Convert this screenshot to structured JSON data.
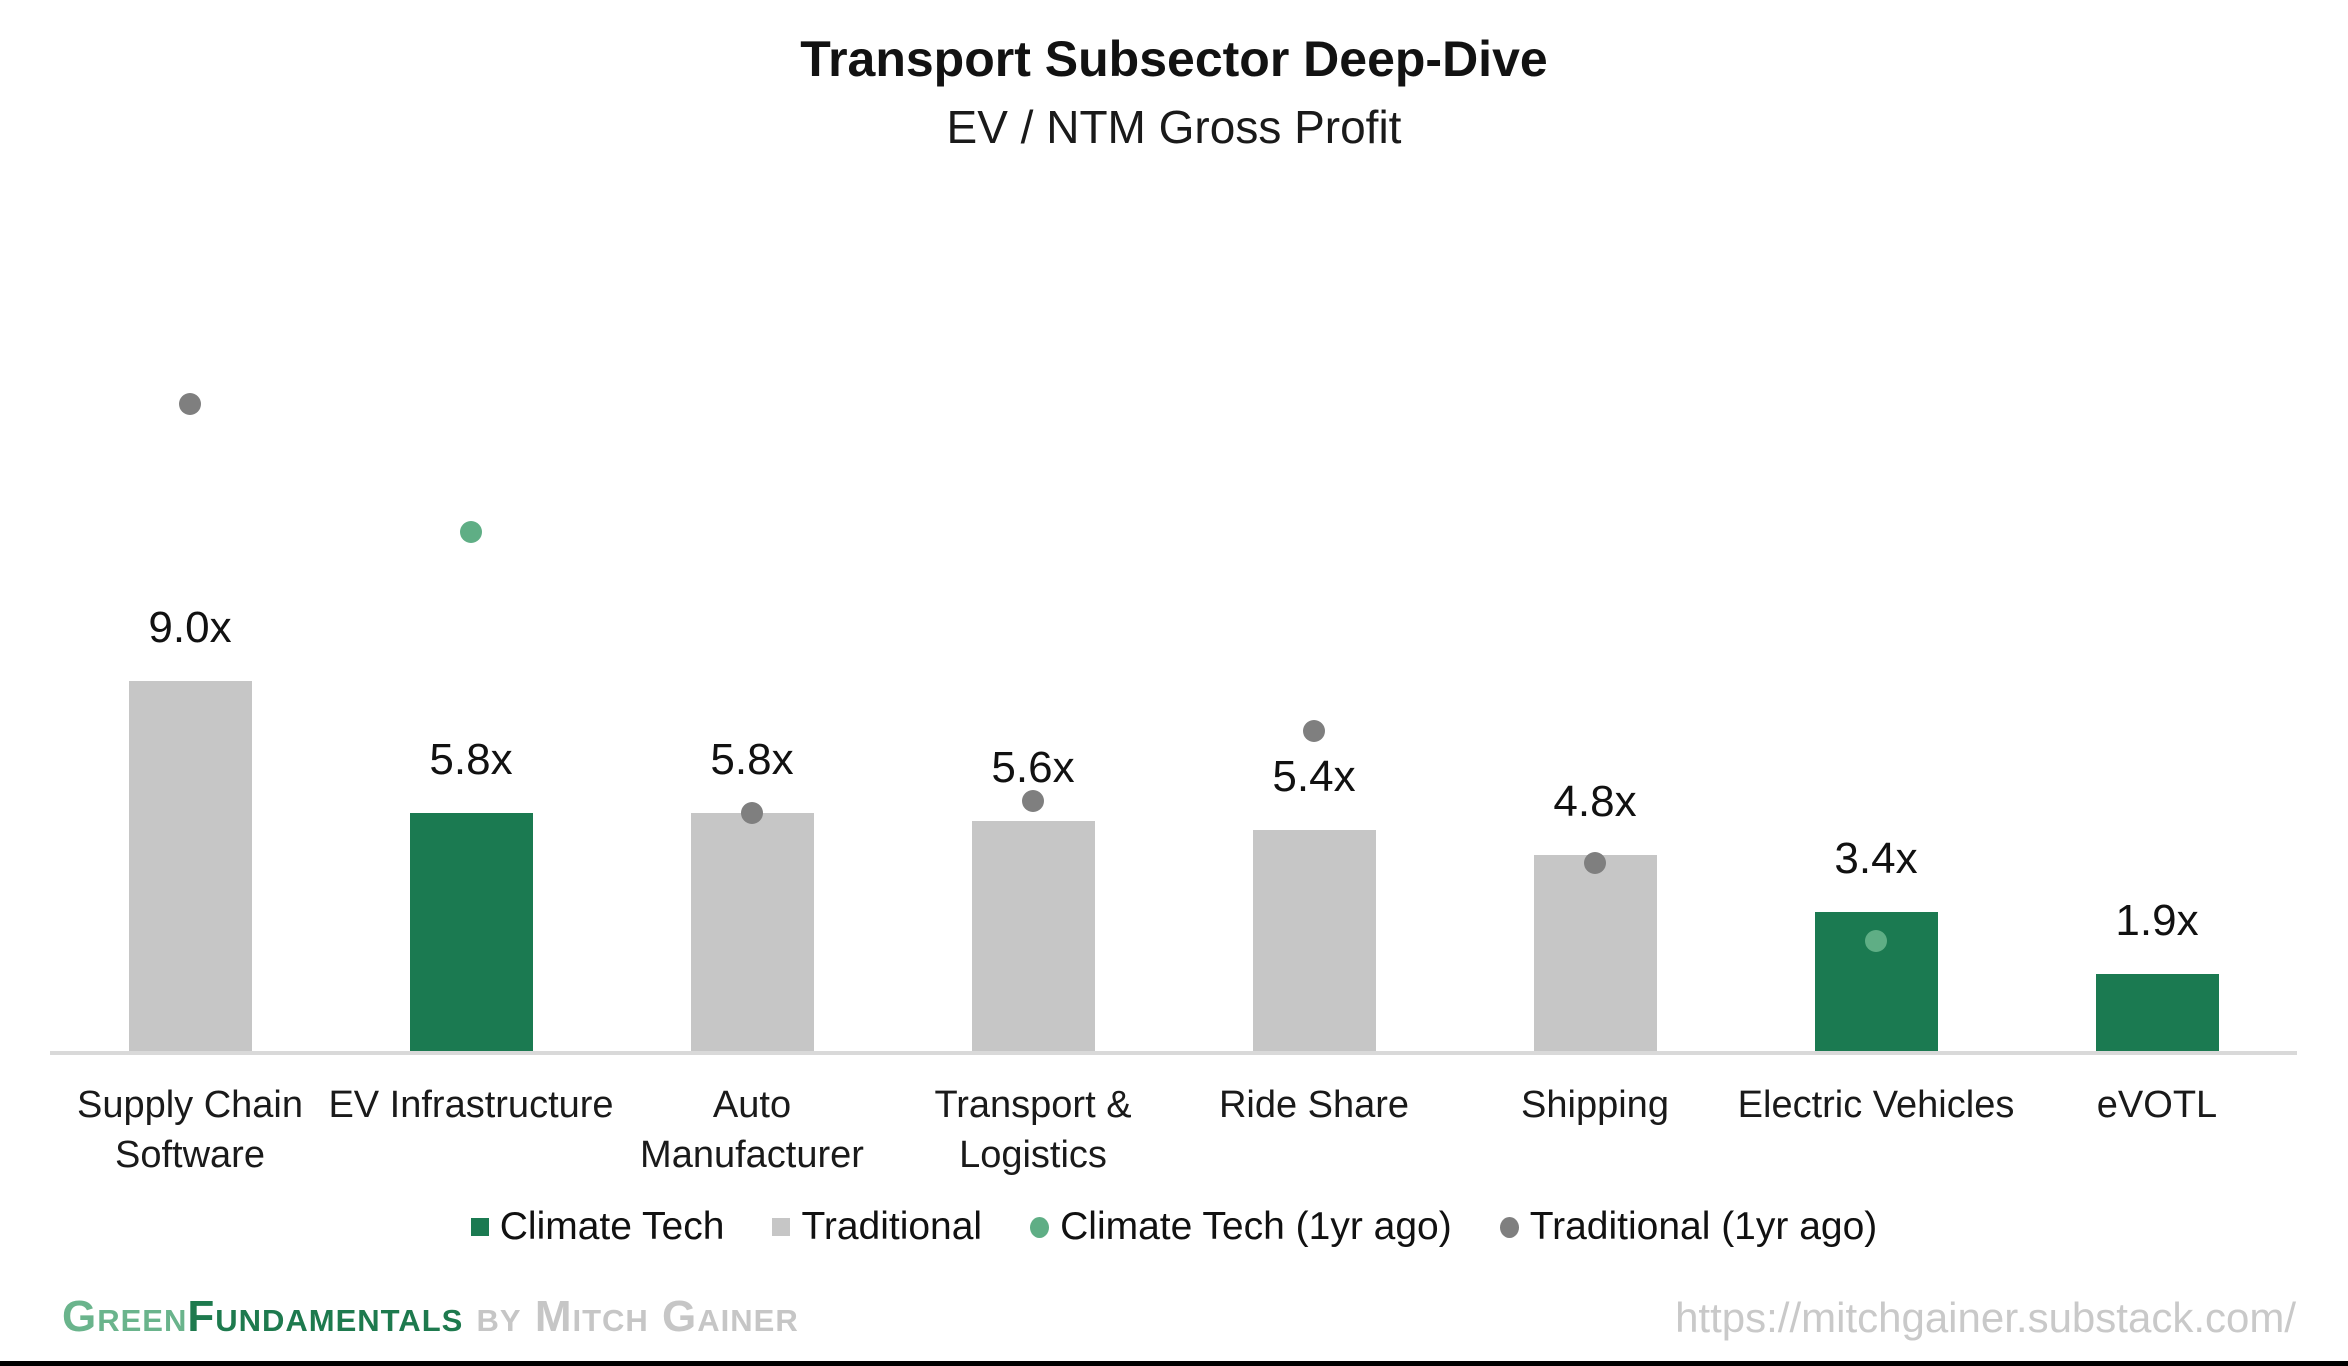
{
  "title": "Transport Subsector Deep-Dive",
  "subtitle": "EV / NTM Gross Profit",
  "chart_data": {
    "type": "bar",
    "title": "Transport Subsector Deep-Dive",
    "subtitle": "EV / NTM Gross Profit",
    "value_unit_suffix": "x",
    "grid": false,
    "legend_position": "bottom",
    "ylim": [
      0,
      21.6
    ],
    "categories": [
      "Supply Chain Software",
      "EV Infrastructure",
      "Auto Manufacturer",
      "Transport & Logistics",
      "Ride Share",
      "Shipping",
      "Electric Vehicles",
      "eVOTL"
    ],
    "category_lines": [
      [
        "Supply Chain",
        "Software"
      ],
      [
        "EV Infrastructure"
      ],
      [
        "Auto",
        "Manufacturer"
      ],
      [
        "Transport &",
        "Logistics"
      ],
      [
        "Ride Share"
      ],
      [
        "Shipping"
      ],
      [
        "Electric Vehicles"
      ],
      [
        "eVOTL"
      ]
    ],
    "groups": [
      "Traditional",
      "Climate Tech",
      "Traditional",
      "Traditional",
      "Traditional",
      "Traditional",
      "Climate Tech",
      "Climate Tech"
    ],
    "series": [
      {
        "name": "Current EV / NTM Gross Profit",
        "type": "bar",
        "values": [
          9.0,
          5.8,
          5.8,
          5.6,
          5.4,
          4.8,
          3.4,
          1.9
        ],
        "labels": [
          "9.0x",
          "5.8x",
          "5.8x",
          "5.6x",
          "5.4x",
          "4.8x",
          "3.4x",
          "1.9x"
        ]
      },
      {
        "name": "1yr ago EV / NTM Gross Profit",
        "type": "scatter",
        "values": [
          15.7,
          12.6,
          5.8,
          6.1,
          7.8,
          4.6,
          2.7,
          null
        ]
      }
    ]
  },
  "legend": {
    "items": [
      {
        "label": "Climate Tech",
        "marker": "square",
        "color_key": "climate_tech"
      },
      {
        "label": "Traditional",
        "marker": "square",
        "color_key": "traditional"
      },
      {
        "label": "Climate Tech (1yr ago)",
        "marker": "circle",
        "color_key": "climate_tech_1yr"
      },
      {
        "label": "Traditional (1yr ago)",
        "marker": "circle",
        "color_key": "traditional_1yr"
      }
    ]
  },
  "colors": {
    "climate_tech": "#1b7a51",
    "traditional": "#c6c6c6",
    "climate_tech_1yr": "#5fae85",
    "traditional_1yr": "#7f7f7f",
    "axis_line": "#d9d9d9",
    "brand_light_green": "#6ab48c",
    "brand_dark_green": "#1e7a4e",
    "footer_gray": "#c9c9c9"
  },
  "footer": {
    "brand_part1": "Green",
    "brand_part2": "Fundamentals",
    "byline": " by Mitch Gainer",
    "url": "https://mitchgainer.substack.com/"
  }
}
